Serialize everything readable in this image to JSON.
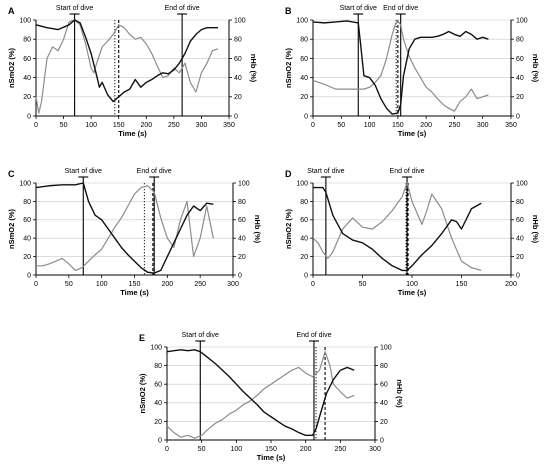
{
  "chart_data": [
    {
      "panel": "A",
      "type": "line",
      "xlabel": "Time (s)",
      "ylabel_left": "nSmO2 (%)",
      "ylabel_right": "nHb (%)",
      "xlim": [
        0,
        350
      ],
      "xticks": [
        0,
        50,
        100,
        150,
        200,
        250,
        300,
        350
      ],
      "ylim": [
        0,
        100
      ],
      "yticks": [
        0,
        20,
        40,
        60,
        80,
        100
      ],
      "start_dive": 70,
      "end_dive": 265,
      "dotted_line": 143,
      "dashed_line": 150,
      "start_label": "Start of dive",
      "end_label": "End of dive",
      "nsmo2": {
        "x": [
          0,
          20,
          40,
          60,
          70,
          80,
          90,
          100,
          110,
          115,
          120,
          130,
          140,
          150,
          160,
          170,
          180,
          190,
          200,
          210,
          220,
          230,
          240,
          250,
          260,
          270,
          280,
          290,
          300,
          310,
          320,
          330
        ],
        "y": [
          95,
          92,
          90,
          95,
          100,
          97,
          82,
          65,
          42,
          30,
          35,
          22,
          15,
          20,
          25,
          28,
          38,
          30,
          35,
          38,
          42,
          45,
          44,
          48,
          55,
          65,
          78,
          85,
          90,
          92,
          92,
          92
        ]
      },
      "nhb": {
        "x": [
          0,
          5,
          10,
          20,
          30,
          40,
          50,
          60,
          70,
          80,
          90,
          100,
          105,
          110,
          120,
          130,
          140,
          150,
          160,
          170,
          180,
          190,
          200,
          210,
          220,
          230,
          240,
          250,
          260,
          270,
          280,
          290,
          300,
          310,
          320,
          330
        ],
        "y": [
          20,
          3,
          15,
          60,
          72,
          68,
          80,
          98,
          100,
          95,
          75,
          50,
          45,
          55,
          72,
          78,
          85,
          95,
          92,
          85,
          80,
          82,
          75,
          65,
          52,
          40,
          42,
          50,
          45,
          55,
          35,
          25,
          45,
          55,
          68,
          70
        ]
      }
    },
    {
      "panel": "B",
      "type": "line",
      "xlabel": "Time (s)",
      "ylabel_left": "nSmO2 (%)",
      "ylabel_right": "nHb (%)",
      "xlim": [
        0,
        350
      ],
      "xticks": [
        0,
        50,
        100,
        150,
        200,
        250,
        300,
        350
      ],
      "ylim": [
        0,
        100
      ],
      "yticks": [
        0,
        20,
        40,
        60,
        80,
        100
      ],
      "start_dive": 80,
      "end_dive": 155,
      "dotted_line": 147,
      "dashed_line": 150,
      "start_label": "Start of dive",
      "end_label": "End of dive",
      "nsmo2": {
        "x": [
          0,
          20,
          40,
          60,
          80,
          85,
          90,
          100,
          110,
          120,
          130,
          140,
          150,
          155,
          160,
          170,
          180,
          190,
          200,
          210,
          220,
          230,
          240,
          250,
          260,
          270,
          280,
          290,
          300,
          310
        ],
        "y": [
          98,
          97,
          98,
          99,
          97,
          70,
          42,
          40,
          32,
          18,
          8,
          2,
          3,
          12,
          42,
          70,
          80,
          82,
          82,
          82,
          83,
          85,
          88,
          85,
          83,
          88,
          85,
          80,
          82,
          80
        ]
      },
      "nhb": {
        "x": [
          0,
          20,
          40,
          60,
          80,
          90,
          100,
          110,
          120,
          130,
          140,
          148,
          155,
          160,
          170,
          180,
          190,
          200,
          210,
          220,
          230,
          240,
          250,
          260,
          270,
          280,
          290,
          300,
          310
        ],
        "y": [
          37,
          33,
          28,
          28,
          28,
          28,
          30,
          35,
          42,
          60,
          85,
          100,
          95,
          80,
          62,
          50,
          40,
          30,
          25,
          18,
          12,
          8,
          5,
          15,
          20,
          28,
          18,
          20,
          22
        ]
      }
    },
    {
      "panel": "C",
      "type": "line",
      "xlabel": "Time (s)",
      "ylabel_left": "nSmO2 (%)",
      "ylabel_right": "nHb (%)",
      "xlim": [
        0,
        300
      ],
      "xticks": [
        0,
        50,
        100,
        150,
        200,
        250,
        300
      ],
      "ylim": [
        0,
        100
      ],
      "yticks": [
        0,
        20,
        40,
        60,
        80,
        100
      ],
      "start_dive": 72,
      "end_dive": 180,
      "dotted_line": 165,
      "dashed_line": 178,
      "start_label": "Start of dive",
      "end_label": "End of dive",
      "nsmo2": {
        "x": [
          0,
          20,
          40,
          60,
          72,
          80,
          90,
          100,
          110,
          120,
          130,
          140,
          150,
          160,
          170,
          180,
          190,
          200,
          210,
          220,
          230,
          240,
          250,
          260,
          270
        ],
        "y": [
          95,
          97,
          98,
          98,
          100,
          80,
          65,
          60,
          50,
          40,
          30,
          22,
          15,
          8,
          3,
          2,
          5,
          20,
          35,
          50,
          65,
          75,
          70,
          78,
          77
        ]
      },
      "nhb": {
        "x": [
          0,
          10,
          20,
          30,
          40,
          50,
          60,
          70,
          80,
          90,
          100,
          110,
          120,
          130,
          140,
          150,
          160,
          170,
          180,
          190,
          200,
          210,
          220,
          230,
          240,
          250,
          260,
          270
        ],
        "y": [
          10,
          10,
          12,
          15,
          18,
          12,
          5,
          8,
          15,
          22,
          28,
          40,
          52,
          62,
          75,
          88,
          95,
          97,
          90,
          62,
          40,
          30,
          60,
          80,
          20,
          40,
          75,
          40
        ]
      }
    },
    {
      "panel": "D",
      "type": "line",
      "xlabel": "Time (s)",
      "ylabel_left": "nSmO2 (%)",
      "ylabel_right": "nHb (%)",
      "xlim": [
        0,
        200
      ],
      "xticks": [
        0,
        50,
        100,
        150,
        200
      ],
      "ylim": [
        0,
        100
      ],
      "yticks": [
        0,
        20,
        40,
        60,
        80,
        100
      ],
      "start_dive": 13,
      "end_dive": 95,
      "dotted_line": 94,
      "dashed_line": 96,
      "start_label": "Start of dive",
      "end_label": "End of dive",
      "nsmo2": {
        "x": [
          0,
          10,
          13,
          20,
          30,
          40,
          50,
          60,
          70,
          80,
          90,
          95,
          100,
          110,
          120,
          130,
          140,
          145,
          150,
          160,
          170
        ],
        "y": [
          95,
          95,
          90,
          65,
          45,
          38,
          35,
          28,
          18,
          10,
          5,
          5,
          10,
          22,
          32,
          45,
          60,
          58,
          50,
          72,
          78
        ]
      },
      "nhb": {
        "x": [
          0,
          5,
          10,
          15,
          20,
          30,
          40,
          50,
          60,
          70,
          80,
          90,
          95,
          100,
          110,
          115,
          120,
          130,
          140,
          150,
          160,
          170
        ],
        "y": [
          40,
          35,
          25,
          18,
          25,
          50,
          62,
          52,
          50,
          58,
          70,
          85,
          100,
          80,
          55,
          70,
          88,
          72,
          40,
          15,
          8,
          5
        ]
      }
    },
    {
      "panel": "E",
      "type": "line",
      "xlabel": "Time (s)",
      "ylabel_left": "nSmO2 (%)",
      "ylabel_right": "nHb (%)",
      "xlim": [
        0,
        300
      ],
      "xticks": [
        0,
        50,
        100,
        150,
        200,
        250,
        300
      ],
      "ylim": [
        0,
        100
      ],
      "yticks": [
        0,
        20,
        40,
        60,
        80,
        100
      ],
      "start_dive": 48,
      "end_dive": 212,
      "dotted_line": 215,
      "dashed_line": 228,
      "start_label": "Start of dive",
      "end_label": "End of dive",
      "nsmo2": {
        "x": [
          0,
          10,
          20,
          30,
          40,
          48,
          60,
          70,
          80,
          90,
          100,
          110,
          120,
          130,
          140,
          150,
          160,
          170,
          180,
          190,
          200,
          210,
          215,
          220,
          230,
          240,
          250,
          260,
          270
        ],
        "y": [
          95,
          96,
          97,
          96,
          97,
          95,
          88,
          82,
          75,
          68,
          60,
          52,
          45,
          38,
          30,
          25,
          20,
          15,
          12,
          8,
          5,
          5,
          12,
          25,
          50,
          65,
          75,
          78,
          75
        ]
      },
      "nhb": {
        "x": [
          0,
          10,
          20,
          30,
          40,
          50,
          60,
          70,
          80,
          90,
          100,
          110,
          120,
          130,
          140,
          150,
          160,
          170,
          180,
          190,
          200,
          210,
          220,
          228,
          235,
          240,
          250,
          260,
          270
        ],
        "y": [
          15,
          8,
          3,
          5,
          2,
          5,
          12,
          18,
          22,
          28,
          32,
          38,
          42,
          48,
          55,
          60,
          65,
          70,
          75,
          78,
          72,
          68,
          75,
          95,
          80,
          60,
          52,
          45,
          48
        ]
      }
    }
  ]
}
